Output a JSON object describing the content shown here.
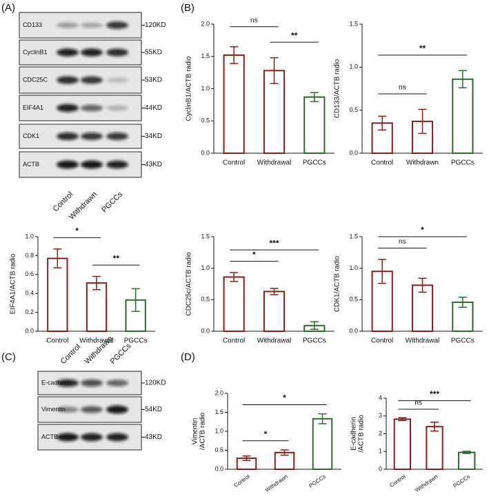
{
  "panel_labels": [
    "(A)",
    "(B)",
    "(C)",
    "(D)"
  ],
  "blot_a": {
    "lanes": [
      "Control",
      "Withdrawn",
      "PGCCs"
    ],
    "rows": [
      {
        "protein": "CD133",
        "size": "120KD"
      },
      {
        "protein": "CyclinB1",
        "size": "55KD"
      },
      {
        "protein": "CDC25C",
        "size": "53KD"
      },
      {
        "protein": "EIF4A1",
        "size": "44KD"
      },
      {
        "protein": "CDK1",
        "size": "34KD"
      },
      {
        "protein": "ACTB",
        "size": "43KD"
      }
    ]
  },
  "blot_c": {
    "lanes": [
      "Control",
      "Withdrawn",
      "PGCCs"
    ],
    "rows": [
      {
        "protein": "E-cadherin",
        "size": "120KD"
      },
      {
        "protein": "Vimentin",
        "size": "54KD"
      },
      {
        "protein": "ACTB",
        "size": "43KD"
      }
    ]
  },
  "chart_data": [
    {
      "type": "bar",
      "ylabel": "CyclinB1/ACTB radio",
      "categories": [
        "Control",
        "Withdrawal",
        "PGCCs"
      ],
      "values": [
        1.52,
        1.28,
        0.87
      ],
      "errors": [
        0.13,
        0.2,
        0.07
      ],
      "colors": [
        "#8b1c1c",
        "#8b1c1c",
        "#2d6a2d"
      ],
      "ylim": [
        0,
        2
      ],
      "yticks": [
        {
          "value": 0,
          "label": "0.0"
        },
        0.5,
        {
          "value": 1,
          "label": "1.0"
        },
        1.5,
        {
          "value": 2,
          "label": "2.0"
        }
      ],
      "annotations": [
        {
          "text": "**",
          "between": [
            1,
            2
          ]
        },
        {
          "text": "ns",
          "between": [
            0,
            1
          ]
        }
      ]
    },
    {
      "type": "bar",
      "ylabel": "CD133/ACTB radio",
      "categories": [
        "Control",
        "Withdrawn",
        "PGCCs"
      ],
      "values": [
        0.35,
        0.37,
        0.86
      ],
      "errors": [
        0.08,
        0.14,
        0.1
      ],
      "colors": [
        "#8b1c1c",
        "#8b1c1c",
        "#2d6a2d"
      ],
      "ylim": [
        0,
        1.5
      ],
      "yticks": [
        {
          "value": 0,
          "label": "0.0"
        },
        0.5,
        {
          "value": 1,
          "label": "1.0"
        },
        1.5
      ],
      "annotations": [
        {
          "text": "ns",
          "between": [
            0,
            1
          ]
        },
        {
          "text": "**",
          "between": [
            0,
            2
          ]
        }
      ]
    },
    {
      "type": "bar",
      "ylabel": "EIF4A1/ACTB radio",
      "categories": [
        "Control",
        "Withdrawal",
        "PGCCs"
      ],
      "values": [
        0.77,
        0.51,
        0.33
      ],
      "errors": [
        0.1,
        0.07,
        0.12
      ],
      "colors": [
        "#8b1c1c",
        "#8b1c1c",
        "#2d6a2d"
      ],
      "ylim": [
        0,
        1
      ],
      "yticks": [
        {
          "value": 0,
          "label": "0.0"
        },
        0.2,
        0.4,
        0.6,
        0.8,
        {
          "value": 1,
          "label": "1.0"
        }
      ],
      "annotations": [
        {
          "text": "**",
          "between": [
            1,
            2
          ]
        },
        {
          "text": "*",
          "between": [
            0,
            1
          ]
        }
      ]
    },
    {
      "type": "bar",
      "ylabel": "CDC25c/ACTB radio",
      "categories": [
        "Control",
        "Withdrawal",
        "PGCCs"
      ],
      "values": [
        0.86,
        0.63,
        0.09
      ],
      "errors": [
        0.07,
        0.05,
        0.06
      ],
      "colors": [
        "#8b1c1c",
        "#8b1c1c",
        "#2d6a2d"
      ],
      "ylim": [
        0,
        1.5
      ],
      "yticks": [
        {
          "value": 0,
          "label": "0.0"
        },
        0.5,
        {
          "value": 1,
          "label": "1.0"
        },
        1.5
      ],
      "annotations": [
        {
          "text": "*",
          "between": [
            0,
            1
          ]
        },
        {
          "text": "***",
          "between": [
            0,
            2
          ]
        }
      ]
    },
    {
      "type": "bar",
      "ylabel": "CDK1/ACTB radio",
      "categories": [
        "Control",
        "Withdrawal",
        "PGCCs"
      ],
      "values": [
        0.95,
        0.73,
        0.46
      ],
      "errors": [
        0.19,
        0.11,
        0.08
      ],
      "colors": [
        "#8b1c1c",
        "#8b1c1c",
        "#2d6a2d"
      ],
      "ylim": [
        0,
        1.5
      ],
      "yticks": [
        {
          "value": 0,
          "label": "0.0"
        },
        0.5,
        {
          "value": 1,
          "label": "1.0"
        },
        1.5
      ],
      "annotations": [
        {
          "text": "ns",
          "between": [
            0,
            1
          ]
        },
        {
          "text": "*",
          "between": [
            0,
            2
          ]
        }
      ]
    },
    {
      "type": "bar",
      "ylabel": [
        "Vimentin",
        "/ACTB radio"
      ],
      "categories": [
        "Control",
        "Withdrawn",
        "PGCCs"
      ],
      "values": [
        0.29,
        0.44,
        1.33
      ],
      "errors": [
        0.06,
        0.07,
        0.13
      ],
      "colors": [
        "#8b1c1c",
        "#8b1c1c",
        "#2d6a2d"
      ],
      "ylim": [
        0,
        2
      ],
      "yticks": [
        {
          "value": 0,
          "label": "0.0"
        },
        0.5,
        {
          "value": 1,
          "label": "1.0"
        },
        1.5,
        {
          "value": 2,
          "label": "2.0"
        }
      ],
      "annotations": [
        {
          "text": "*",
          "between": [
            0,
            1
          ]
        },
        {
          "text": "*",
          "between": [
            0,
            2
          ]
        }
      ]
    },
    {
      "type": "bar",
      "ylabel": [
        "E-cadherin",
        "/ACTB radio"
      ],
      "categories": [
        "Control",
        "Withdrawn",
        "PGCCs"
      ],
      "values": [
        2.82,
        2.4,
        0.95
      ],
      "errors": [
        0.08,
        0.25,
        0.06
      ],
      "colors": [
        "#8b1c1c",
        "#8b1c1c",
        "#2d6a2d"
      ],
      "ylim": [
        0,
        4
      ],
      "yticks": [
        0,
        1,
        2,
        3,
        4
      ],
      "annotations": [
        {
          "text": "ns",
          "between": [
            0,
            1
          ]
        },
        {
          "text": "***",
          "between": [
            0,
            2
          ]
        }
      ]
    }
  ]
}
